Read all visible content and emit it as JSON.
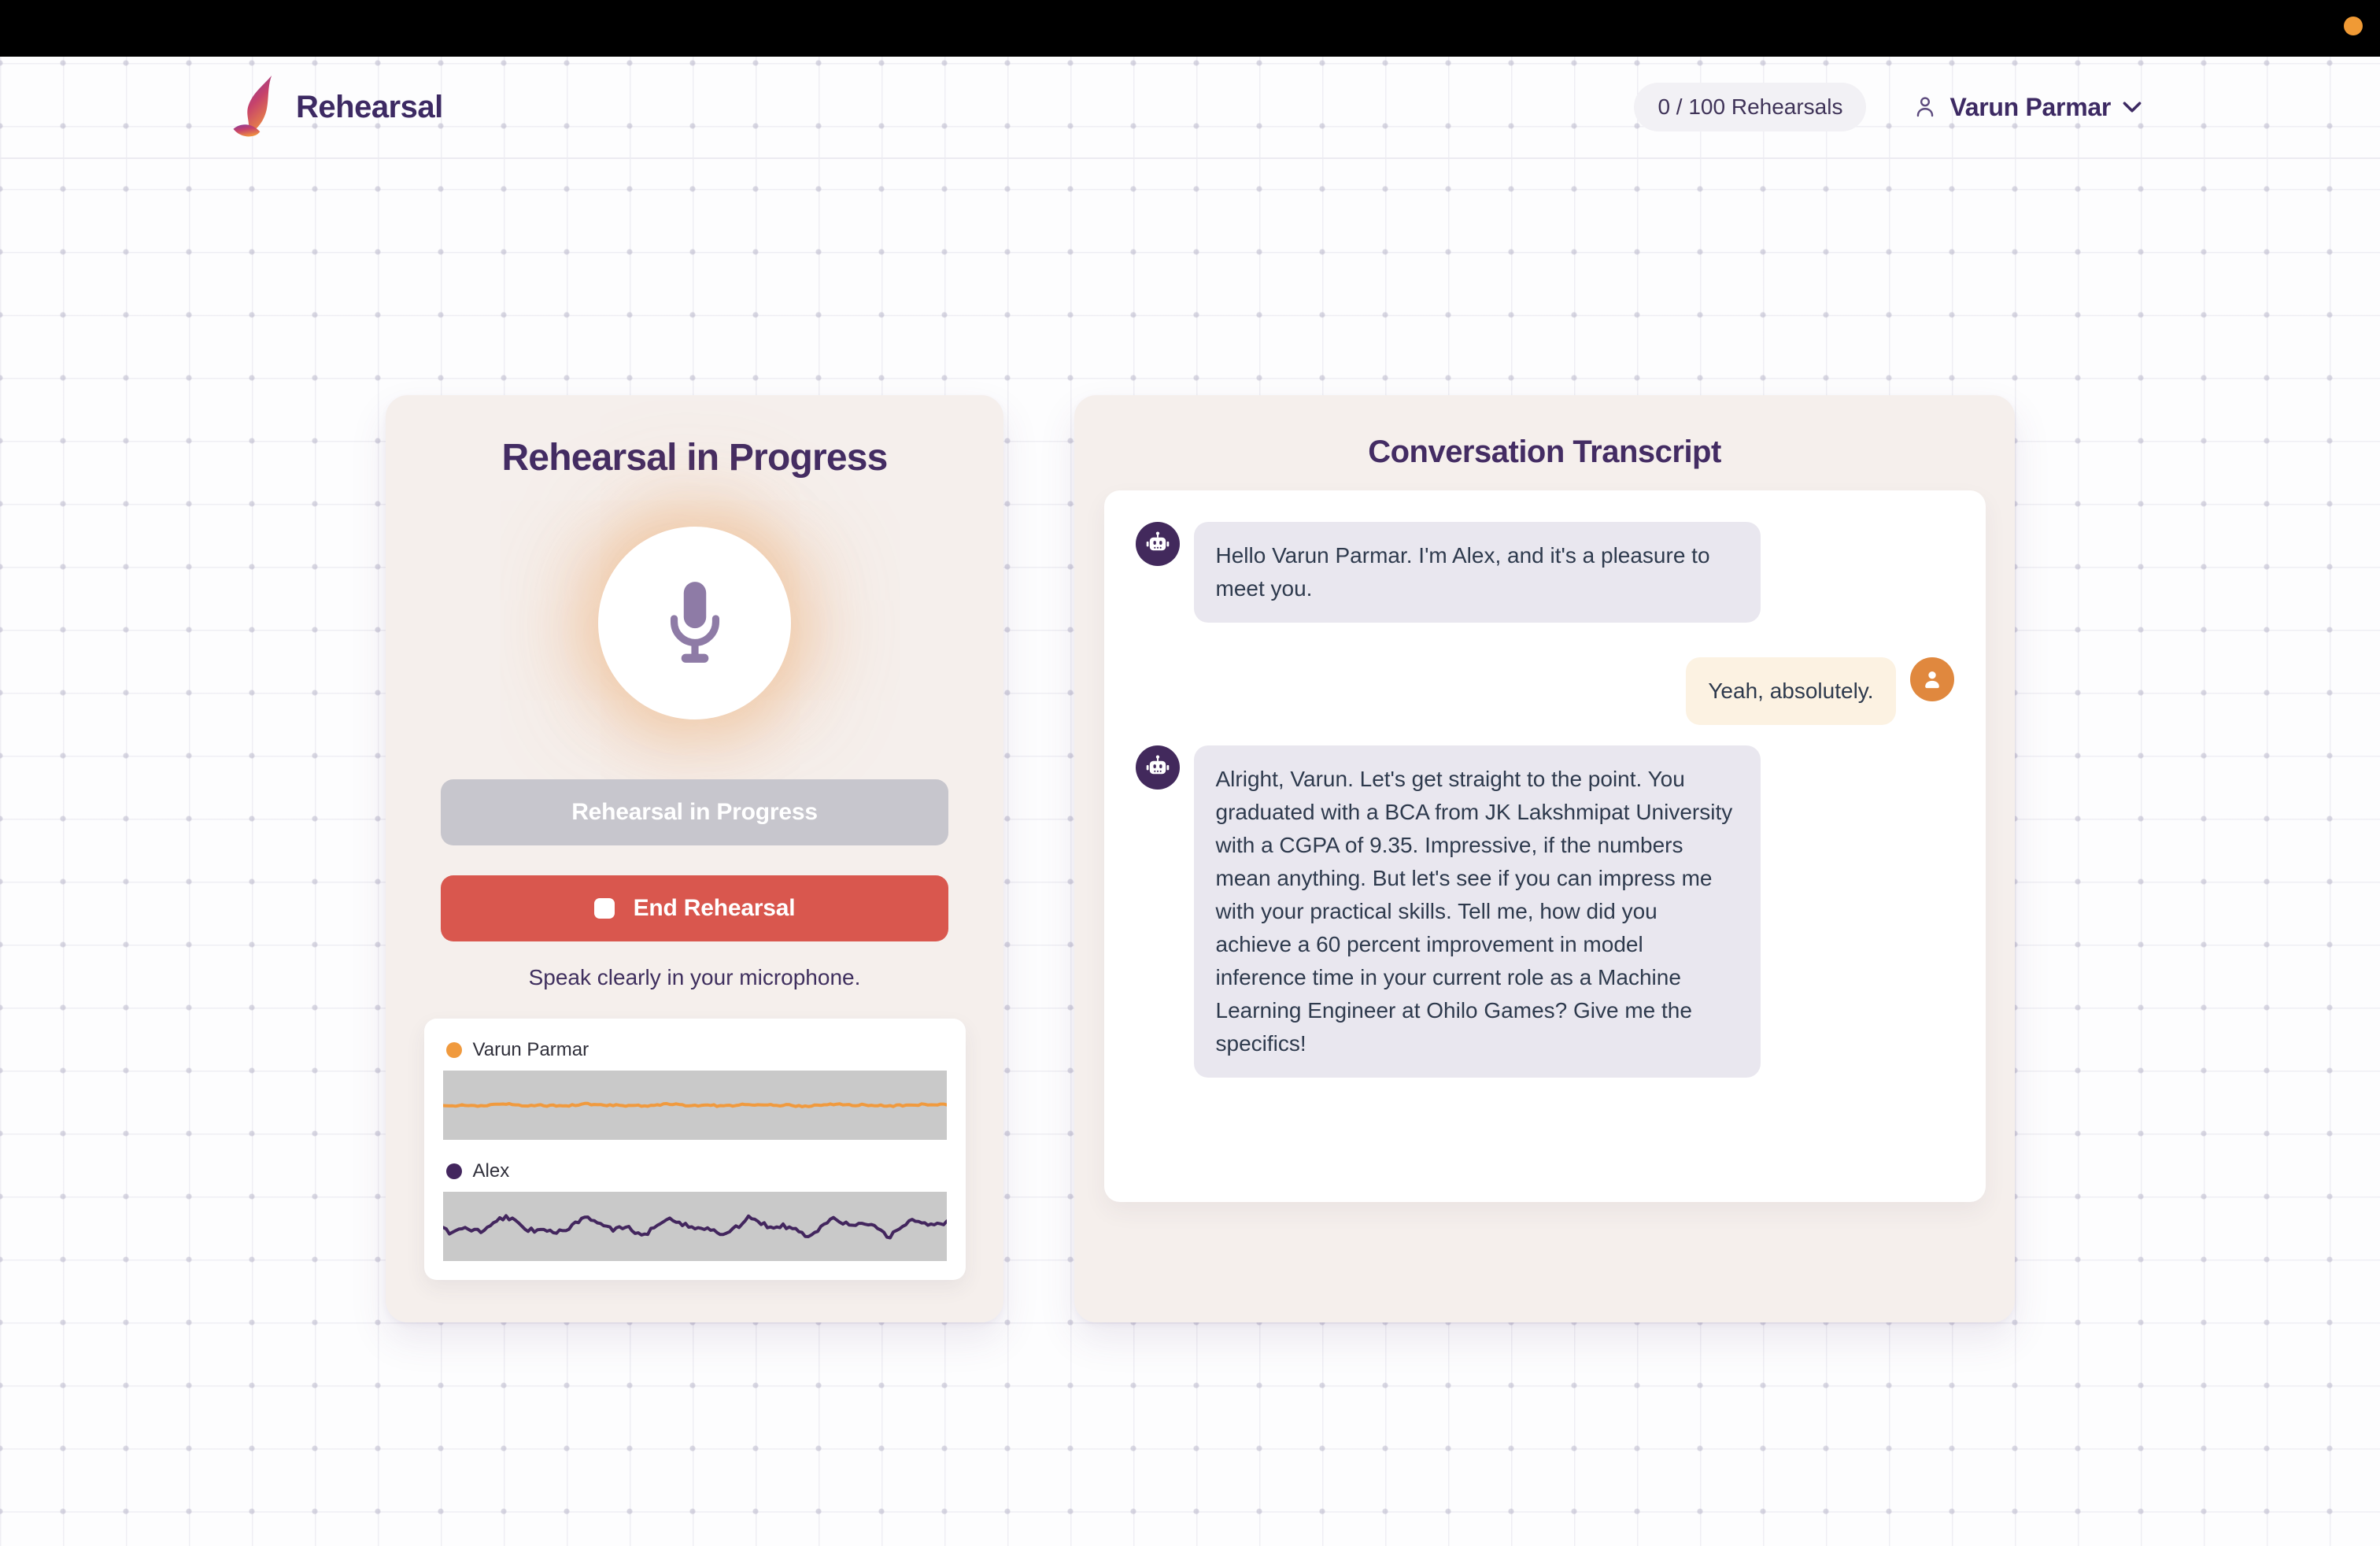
{
  "top_bar": {
    "recording_indicator_color": "#f09a35"
  },
  "header": {
    "brand": "Rehearsal",
    "usage_badge": "0 / 100 Rehearsals",
    "user_name": "Varun Parmar"
  },
  "session": {
    "title": "Rehearsal in Progress",
    "status_button": "Rehearsal in Progress",
    "end_button": "End Rehearsal",
    "tip": "Speak clearly in your microphone.",
    "waveforms": [
      {
        "label": "Varun Parmar",
        "color": "#f09a3e",
        "amplitude": 0.8,
        "jitter": 2.2,
        "seed": 11
      },
      {
        "label": "Alex",
        "color": "#43265e",
        "amplitude": 7.5,
        "jitter": 6.5,
        "seed": 7
      }
    ]
  },
  "transcript": {
    "title": "Conversation Transcript",
    "messages": [
      {
        "role": "bot",
        "text": "Hello Varun Parmar. I'm Alex, and it's a pleasure to meet you."
      },
      {
        "role": "user",
        "text": "Yeah, absolutely."
      },
      {
        "role": "bot",
        "text": "Alright, Varun. Let's get straight to the point. You graduated with a BCA from JK Lakshmipat University with a CGPA of 9.35. Impressive, if the numbers mean anything. But let's see if you can impress me with your practical skills. Tell me, how did you achieve a 60 percent improvement in model inference time in your current role as a Machine Learning Engineer at Ohilo Games? Give me the specifics!"
      }
    ]
  },
  "colors": {
    "accent_purple": "#432c63",
    "accent_orange": "#e0883e",
    "danger_red": "#d9574e",
    "disabled_gray": "#c7c6cd",
    "card_bg": "#f5efec",
    "bot_bubble": "#e9e7ef",
    "user_bubble": "#fcf2e2",
    "wave_strip": "#c9c9c9"
  }
}
